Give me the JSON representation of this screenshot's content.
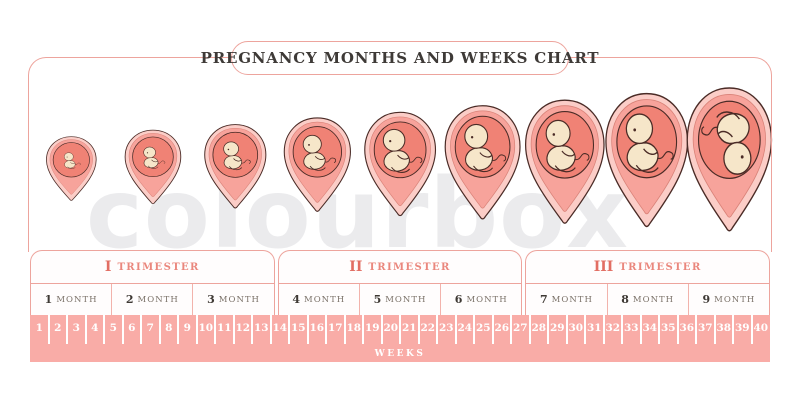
{
  "title": "PREGNANCY MONTHS AND WEEKS CHART",
  "watermark": "colourbox",
  "weeks_axis_label": "WEEKS",
  "weeks": [
    "1",
    "2",
    "3",
    "4",
    "5",
    "6",
    "7",
    "8",
    "9",
    "10",
    "11",
    "12",
    "13",
    "14",
    "15",
    "16",
    "17",
    "18",
    "19",
    "20",
    "21",
    "22",
    "23",
    "24",
    "25",
    "26",
    "27",
    "28",
    "29",
    "30",
    "31",
    "32",
    "33",
    "34",
    "35",
    "36",
    "37",
    "38",
    "39",
    "40"
  ],
  "trimesters": [
    {
      "numeral": "I",
      "label": "TRIMESTER",
      "months": [
        {
          "number": "1",
          "label": "MONTH"
        },
        {
          "number": "2",
          "label": "MONTH"
        },
        {
          "number": "3",
          "label": "MONTH"
        }
      ]
    },
    {
      "numeral": "II",
      "label": "TRIMESTER",
      "months": [
        {
          "number": "4",
          "label": "MONTH"
        },
        {
          "number": "5",
          "label": "MONTH"
        },
        {
          "number": "6",
          "label": "MONTH"
        }
      ]
    },
    {
      "numeral": "III",
      "label": "TRIMESTER",
      "months": [
        {
          "number": "7",
          "label": "MONTH"
        },
        {
          "number": "8",
          "label": "MONTH"
        },
        {
          "number": "9",
          "label": "MONTH"
        }
      ]
    }
  ],
  "illustrations": [
    {
      "month": 1,
      "name": "fetus-month-1",
      "orientation": "head-up",
      "relative_scale": 0.45,
      "figure_scale": 0.6
    },
    {
      "month": 2,
      "name": "fetus-month-2",
      "orientation": "head-up",
      "relative_scale": 0.52,
      "figure_scale": 0.7
    },
    {
      "month": 3,
      "name": "fetus-month-3",
      "orientation": "head-up",
      "relative_scale": 0.58,
      "figure_scale": 0.8
    },
    {
      "month": 4,
      "name": "fetus-month-4",
      "orientation": "head-up",
      "relative_scale": 0.65,
      "figure_scale": 0.9
    },
    {
      "month": 5,
      "name": "fetus-month-5",
      "orientation": "head-up",
      "relative_scale": 0.72,
      "figure_scale": 1.0
    },
    {
      "month": 6,
      "name": "fetus-month-6",
      "orientation": "head-up",
      "relative_scale": 0.79,
      "figure_scale": 1.0
    },
    {
      "month": 7,
      "name": "fetus-month-7",
      "orientation": "head-up",
      "relative_scale": 0.86,
      "figure_scale": 1.0
    },
    {
      "month": 8,
      "name": "fetus-month-8",
      "orientation": "head-up",
      "relative_scale": 0.93,
      "figure_scale": 1.05
    },
    {
      "month": 9,
      "name": "fetus-month-9",
      "orientation": "head-down",
      "relative_scale": 1.0,
      "figure_scale": 1.05
    }
  ],
  "colors": {
    "frame_pink": "#eda49d",
    "band_pink": "#f9aca7",
    "trimester_text": "#ea877d",
    "trimester_numeral": "#e26e63",
    "month_number": "#3e3934",
    "month_label": "#7b7269",
    "title_text": "#3e3a37",
    "womb_outer": "#fbcdc7",
    "womb_middle": "#f7a39b",
    "womb_inner": "#f08275",
    "fetus_skin": "#f6e6c9",
    "outline": "#4a2b26",
    "week_text": "#ffffff"
  }
}
